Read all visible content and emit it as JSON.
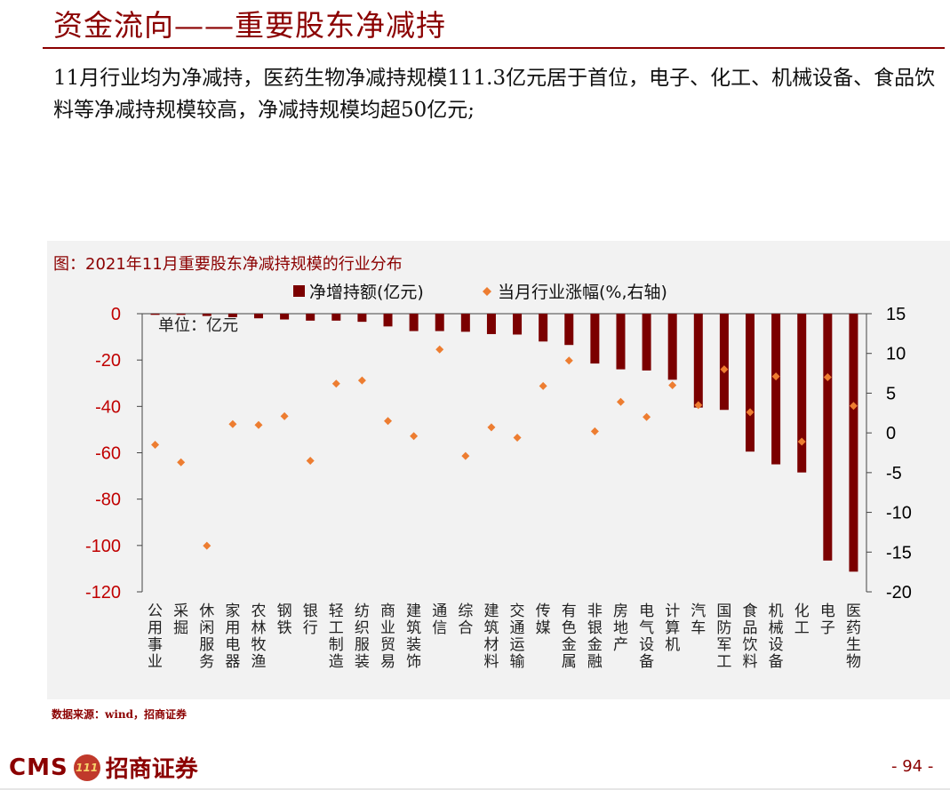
{
  "header": {
    "title": "资金流向——重要股东净减持",
    "subtitle": "11月行业均为净减持，医药生物净减持规模111.3亿元居于首位，电子、化工、机械设备、食品饮料等净减持规模较高，净减持规模均超50亿元;"
  },
  "chart_caption": "图：2021年11月重要股东净减持规模的行业分布",
  "chart_data": {
    "type": "bar",
    "categories": [
      "公用事业",
      "采掘",
      "休闲服务",
      "家用电器",
      "农林牧渔",
      "钢铁",
      "银行",
      "轻工制造",
      "纺织服装",
      "商业贸易",
      "建筑装饰",
      "通信",
      "综合",
      "建筑材料",
      "交通运输",
      "传媒",
      "有色金属",
      "非银金融",
      "房地产",
      "电气设备",
      "计算机",
      "汽车",
      "国防军工",
      "食品饮料",
      "机械设备",
      "化工",
      "电子",
      "医药生物"
    ],
    "series": [
      {
        "name": "净增持额(亿元)",
        "type": "bar",
        "axis": "left",
        "color": "#7b0000",
        "values": [
          -0.5,
          -0.5,
          -1,
          -1.5,
          -2,
          -2.5,
          -3,
          -3,
          -3.5,
          -5.5,
          -7.5,
          -7.5,
          -7.8,
          -8.8,
          -9,
          -12,
          -13.5,
          -21.5,
          -24,
          -24.5,
          -28.5,
          -40.5,
          -41.5,
          -59.5,
          -65,
          -68.5,
          -106.5,
          -111.3
        ]
      },
      {
        "name": "当月行业涨幅(%,右轴)",
        "type": "scatter",
        "axis": "right",
        "color": "#ed7d31",
        "values": [
          -1.5,
          -3.7,
          -14.2,
          1.1,
          1,
          2.1,
          -3.5,
          6.2,
          6.6,
          1.5,
          -0.4,
          10.5,
          -2.9,
          0.7,
          -0.6,
          5.9,
          9.1,
          0.2,
          3.9,
          2,
          6,
          3.5,
          8,
          2.6,
          7.1,
          -1.1,
          7,
          3.4
        ]
      }
    ],
    "ylim_left": [
      -120,
      0
    ],
    "ylim_right": [
      -20,
      15
    ],
    "yticks_left": [
      0,
      -20,
      -40,
      -60,
      -80,
      -100,
      -120
    ],
    "yticks_right": [
      15,
      10,
      5,
      0,
      -5,
      -10,
      -15,
      -20
    ],
    "unit_label": "单位：亿元",
    "legend_position": "top"
  },
  "source": "数据来源：wind，招商证券",
  "footer": {
    "logo_text": "CMS",
    "logo_badge": "111",
    "logo_cn": "招商证券",
    "page_number": "- 94 -"
  }
}
